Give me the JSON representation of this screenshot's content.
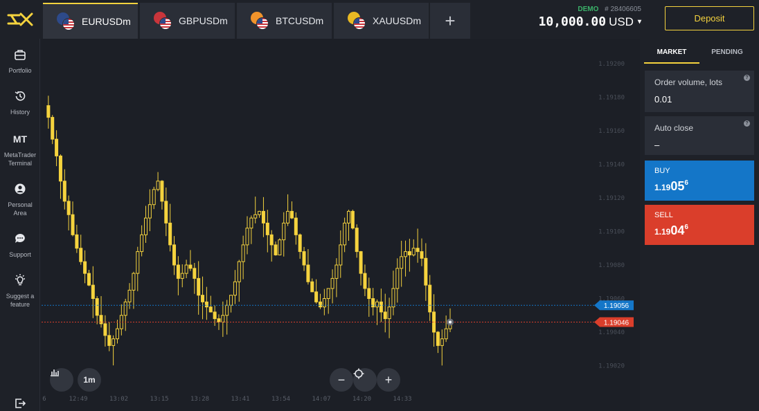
{
  "tabs": [
    {
      "symbol": "EURUSDm",
      "flag": "eu-us-flag-icon",
      "active": true
    },
    {
      "symbol": "GBPUSDm",
      "flag": "gb-us-flag-icon",
      "active": false
    },
    {
      "symbol": "BTCUSDm",
      "flag": "btc-us-flag-icon",
      "active": false
    },
    {
      "symbol": "XAUUSDm",
      "flag": "xau-us-flag-icon",
      "active": false
    }
  ],
  "account": {
    "type": "DEMO",
    "number": "# 28406605",
    "balance": "10,000.00",
    "currency": "USD"
  },
  "deposit_label": "Deposit",
  "sidebar": [
    {
      "label": "Portfolio",
      "icon": "briefcase-icon"
    },
    {
      "label": "History",
      "icon": "history-icon"
    },
    {
      "label": "MetaTrader Terminal",
      "icon": "mt-icon",
      "icon_text": "MT"
    },
    {
      "label": "Personal Area",
      "icon": "user-icon"
    },
    {
      "label": "Support",
      "icon": "chat-icon"
    },
    {
      "label": "Suggest a feature",
      "icon": "lightbulb-icon"
    }
  ],
  "panel": {
    "tabs": [
      "MARKET",
      "PENDING"
    ],
    "volume_label": "Order volume, lots",
    "volume_value": "0.01",
    "autoclose_label": "Auto close",
    "autoclose_value": "–",
    "buy": {
      "label": "BUY",
      "price_a": "1.19",
      "price_b": "05",
      "price_c": "6"
    },
    "sell": {
      "label": "SELL",
      "price_a": "1.19",
      "price_b": "04",
      "price_c": "6"
    }
  },
  "chart_controls": {
    "timeframe": "1m"
  },
  "colors": {
    "accent": "#f5d33e",
    "buy": "#1476c8",
    "sell": "#da3e2b",
    "candle": "#f5d33e"
  },
  "chart_data": {
    "type": "candlestick",
    "y_ticks": [
      "1.19200",
      "1.19180",
      "1.19160",
      "1.19140",
      "1.19120",
      "1.19100",
      "1.19080",
      "1.19060",
      "1.19040",
      "1.19020"
    ],
    "ylim": [
      1.1902,
      1.192
    ],
    "x_ticks": [
      "6",
      "12:49",
      "13:02",
      "13:15",
      "13:28",
      "13:41",
      "13:54",
      "14:07",
      "14:20",
      "14:33"
    ],
    "bid_line": "1.19046",
    "ask_line": "1.19056",
    "close_path": [
      1.19175,
      1.19168,
      1.19155,
      1.19145,
      1.1913,
      1.19118,
      1.1911,
      1.19098,
      1.1909,
      1.19082,
      1.19075,
      1.19068,
      1.1906,
      1.1905,
      1.19045,
      1.19038,
      1.19032,
      1.19036,
      1.19042,
      1.1905,
      1.19058,
      1.19065,
      1.19075,
      1.19088,
      1.19098,
      1.19108,
      1.19116,
      1.19125,
      1.1913,
      1.19118,
      1.19105,
      1.19092,
      1.1908,
      1.19072,
      1.19075,
      1.1908,
      1.19078,
      1.19072,
      1.19062,
      1.19058,
      1.19055,
      1.19052,
      1.19048,
      1.19046,
      1.1905,
      1.19056,
      1.19062,
      1.1907,
      1.19082,
      1.19092,
      1.19102,
      1.19108,
      1.1911,
      1.19112,
      1.19105,
      1.19098,
      1.19092,
      1.19086,
      1.19095,
      1.19105,
      1.19112,
      1.19108,
      1.19098,
      1.19088,
      1.1908,
      1.1907,
      1.19064,
      1.19058,
      1.19055,
      1.1906,
      1.19066,
      1.19072,
      1.1908,
      1.19092,
      1.19105,
      1.19112,
      1.19102,
      1.19088,
      1.19075,
      1.19066,
      1.1906,
      1.19055,
      1.19058,
      1.19052,
      1.19048,
      1.19055,
      1.19066,
      1.19078,
      1.19085,
      1.19088,
      1.19086,
      1.1909,
      1.19088,
      1.19084,
      1.19068,
      1.19052,
      1.1904,
      1.19032,
      1.19036,
      1.19042,
      1.19046
    ]
  }
}
